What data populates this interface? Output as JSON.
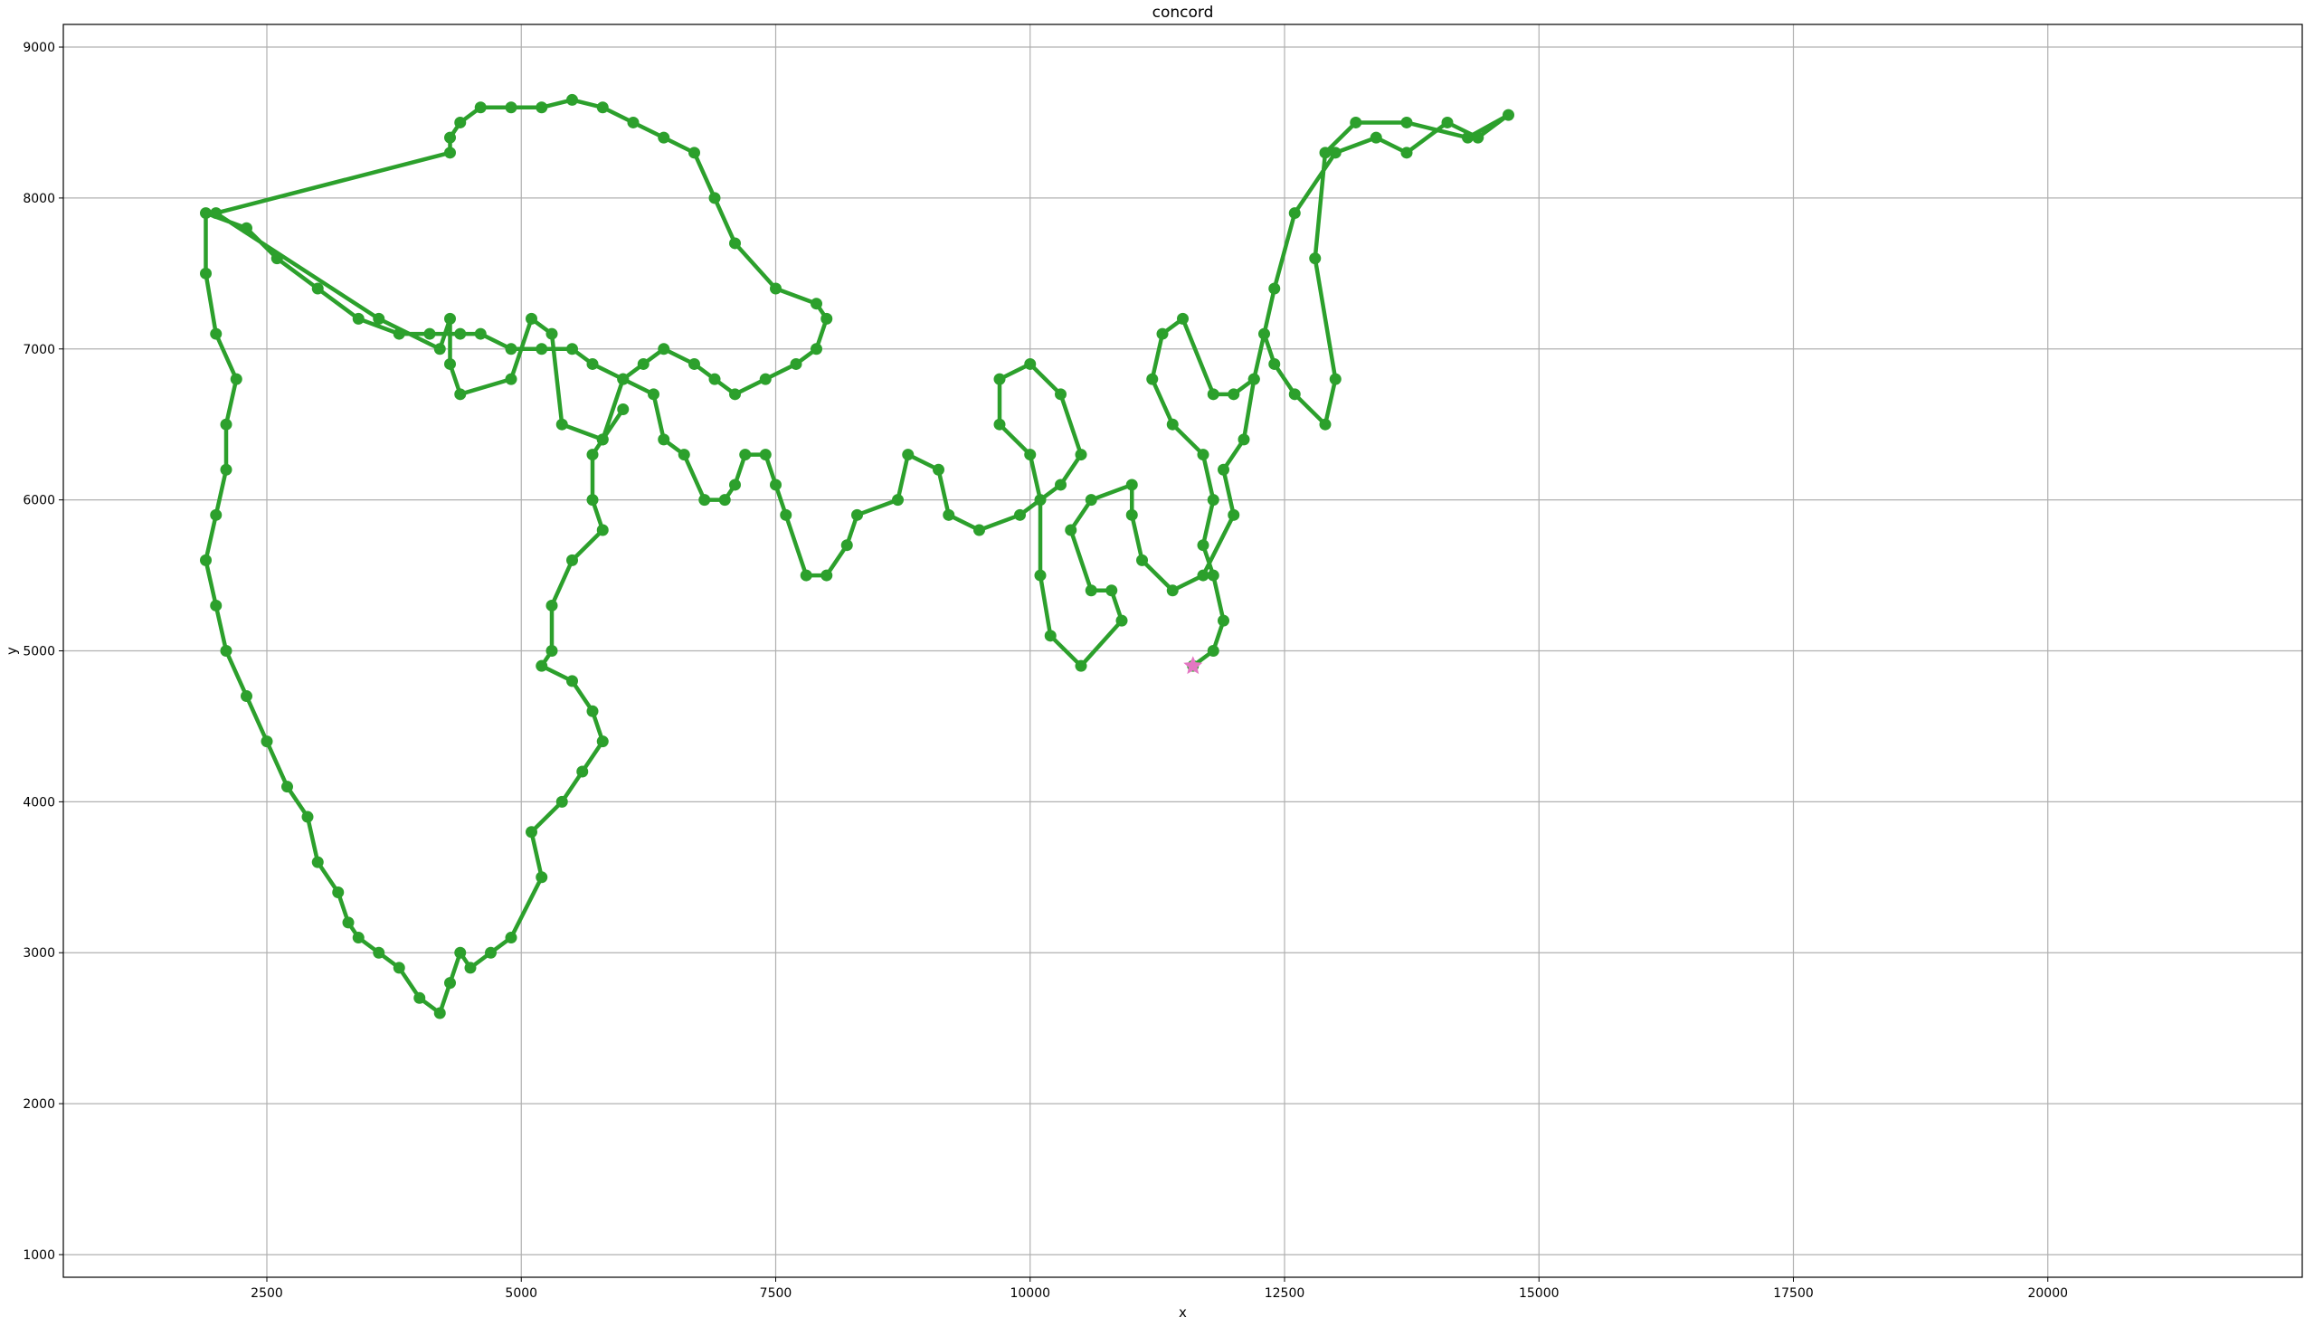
{
  "chart_data": {
    "type": "line",
    "title": "concord",
    "xlabel": "x",
    "ylabel": "y",
    "xlim": [
      500,
      22500
    ],
    "ylim": [
      850,
      9150
    ],
    "xticks": [
      2500,
      5000,
      7500,
      10000,
      12500,
      15000,
      17500,
      20000
    ],
    "yticks": [
      1000,
      2000,
      3000,
      4000,
      5000,
      6000,
      7000,
      8000,
      9000
    ],
    "grid": true,
    "depot": {
      "x": 11600,
      "y": 4900,
      "color": "#e377c2",
      "marker": "star"
    },
    "series": [
      {
        "color": "#2ca02c",
        "points": [
          [
            11600,
            4900
          ],
          [
            11800,
            5000
          ],
          [
            11900,
            5200
          ],
          [
            11800,
            5500
          ],
          [
            11700,
            5700
          ],
          [
            11800,
            6000
          ],
          [
            11700,
            6300
          ],
          [
            11400,
            6500
          ],
          [
            11200,
            6800
          ],
          [
            11300,
            7100
          ],
          [
            11500,
            7200
          ],
          [
            11800,
            6700
          ],
          [
            12000,
            6700
          ],
          [
            12200,
            6800
          ],
          [
            12300,
            7100
          ],
          [
            12400,
            6900
          ],
          [
            12600,
            6700
          ],
          [
            12900,
            6500
          ],
          [
            13000,
            6800
          ],
          [
            12800,
            7600
          ],
          [
            12900,
            8300
          ],
          [
            13200,
            8500
          ],
          [
            13700,
            8500
          ],
          [
            14300,
            8400
          ],
          [
            14700,
            8550
          ],
          [
            14400,
            8400
          ],
          [
            14100,
            8500
          ],
          [
            13700,
            8300
          ],
          [
            13400,
            8400
          ],
          [
            13000,
            8300
          ],
          [
            12600,
            7900
          ],
          [
            12400,
            7400
          ],
          [
            12200,
            6800
          ],
          [
            12100,
            6400
          ],
          [
            11900,
            6200
          ],
          [
            12000,
            5900
          ],
          [
            11700,
            5500
          ],
          [
            11400,
            5400
          ],
          [
            11100,
            5600
          ],
          [
            11000,
            5900
          ],
          [
            11000,
            6100
          ],
          [
            10600,
            6000
          ],
          [
            10400,
            5800
          ],
          [
            10600,
            5400
          ],
          [
            10800,
            5400
          ],
          [
            10900,
            5200
          ],
          [
            10500,
            4900
          ],
          [
            10200,
            5100
          ],
          [
            10100,
            5500
          ],
          [
            10100,
            6000
          ],
          [
            10000,
            6300
          ],
          [
            9700,
            6500
          ],
          [
            9700,
            6800
          ],
          [
            10000,
            6900
          ],
          [
            10300,
            6700
          ],
          [
            10500,
            6300
          ],
          [
            10300,
            6100
          ],
          [
            9900,
            5900
          ],
          [
            9500,
            5800
          ],
          [
            9200,
            5900
          ],
          [
            9100,
            6200
          ],
          [
            8800,
            6300
          ],
          [
            8700,
            6000
          ],
          [
            8300,
            5900
          ],
          [
            8200,
            5700
          ],
          [
            8000,
            5500
          ],
          [
            7800,
            5500
          ],
          [
            7600,
            5900
          ],
          [
            7500,
            6100
          ],
          [
            7400,
            6300
          ],
          [
            7200,
            6300
          ],
          [
            7100,
            6100
          ],
          [
            7000,
            6000
          ],
          [
            6800,
            6000
          ],
          [
            6600,
            6300
          ],
          [
            6400,
            6400
          ],
          [
            6300,
            6700
          ],
          [
            6000,
            6800
          ],
          [
            5800,
            6400
          ],
          [
            5700,
            6300
          ],
          [
            5700,
            6000
          ],
          [
            5800,
            5800
          ],
          [
            5500,
            5600
          ],
          [
            5300,
            5300
          ],
          [
            5300,
            5000
          ],
          [
            5200,
            4900
          ],
          [
            5500,
            4800
          ],
          [
            5700,
            4600
          ],
          [
            5800,
            4400
          ],
          [
            5600,
            4200
          ],
          [
            5400,
            4000
          ],
          [
            5100,
            3800
          ],
          [
            5200,
            3500
          ],
          [
            4900,
            3100
          ],
          [
            4700,
            3000
          ],
          [
            4500,
            2900
          ],
          [
            4400,
            3000
          ],
          [
            4300,
            2800
          ],
          [
            4200,
            2600
          ],
          [
            4000,
            2700
          ],
          [
            3800,
            2900
          ],
          [
            3600,
            3000
          ],
          [
            3400,
            3100
          ],
          [
            3300,
            3200
          ],
          [
            3200,
            3400
          ],
          [
            3000,
            3600
          ],
          [
            2900,
            3900
          ],
          [
            2700,
            4100
          ],
          [
            2500,
            4400
          ],
          [
            2300,
            4700
          ],
          [
            2100,
            5000
          ],
          [
            2000,
            5300
          ],
          [
            1900,
            5600
          ],
          [
            2000,
            5900
          ],
          [
            2100,
            6200
          ],
          [
            2100,
            6500
          ],
          [
            2200,
            6800
          ],
          [
            2000,
            7100
          ],
          [
            1900,
            7500
          ],
          [
            1900,
            7900
          ],
          [
            2300,
            7800
          ],
          [
            2600,
            7600
          ],
          [
            3000,
            7400
          ],
          [
            3400,
            7200
          ],
          [
            3800,
            7100
          ],
          [
            4100,
            7100
          ],
          [
            4400,
            7100
          ],
          [
            4600,
            7100
          ],
          [
            4900,
            7000
          ],
          [
            5200,
            7000
          ],
          [
            5500,
            7000
          ],
          [
            5700,
            6900
          ],
          [
            6000,
            6800
          ],
          [
            6200,
            6900
          ],
          [
            6400,
            7000
          ],
          [
            6700,
            6900
          ],
          [
            6900,
            6800
          ],
          [
            7100,
            6700
          ],
          [
            7400,
            6800
          ],
          [
            7700,
            6900
          ],
          [
            7900,
            7000
          ],
          [
            8000,
            7200
          ],
          [
            7900,
            7300
          ],
          [
            7500,
            7400
          ],
          [
            7100,
            7700
          ],
          [
            6900,
            8000
          ],
          [
            6700,
            8300
          ],
          [
            6400,
            8400
          ],
          [
            6100,
            8500
          ],
          [
            5800,
            8600
          ],
          [
            5500,
            8650
          ],
          [
            5200,
            8600
          ],
          [
            4900,
            8600
          ],
          [
            4600,
            8600
          ],
          [
            4400,
            8500
          ],
          [
            4300,
            8400
          ],
          [
            4300,
            8300
          ],
          [
            2000,
            7900
          ],
          [
            3600,
            7200
          ],
          [
            4200,
            7000
          ],
          [
            4300,
            7200
          ],
          [
            4300,
            6900
          ],
          [
            4400,
            6700
          ],
          [
            4900,
            6800
          ],
          [
            5100,
            7200
          ],
          [
            5300,
            7100
          ],
          [
            5400,
            6500
          ],
          [
            5800,
            6400
          ],
          [
            6000,
            6600
          ]
        ]
      }
    ]
  }
}
